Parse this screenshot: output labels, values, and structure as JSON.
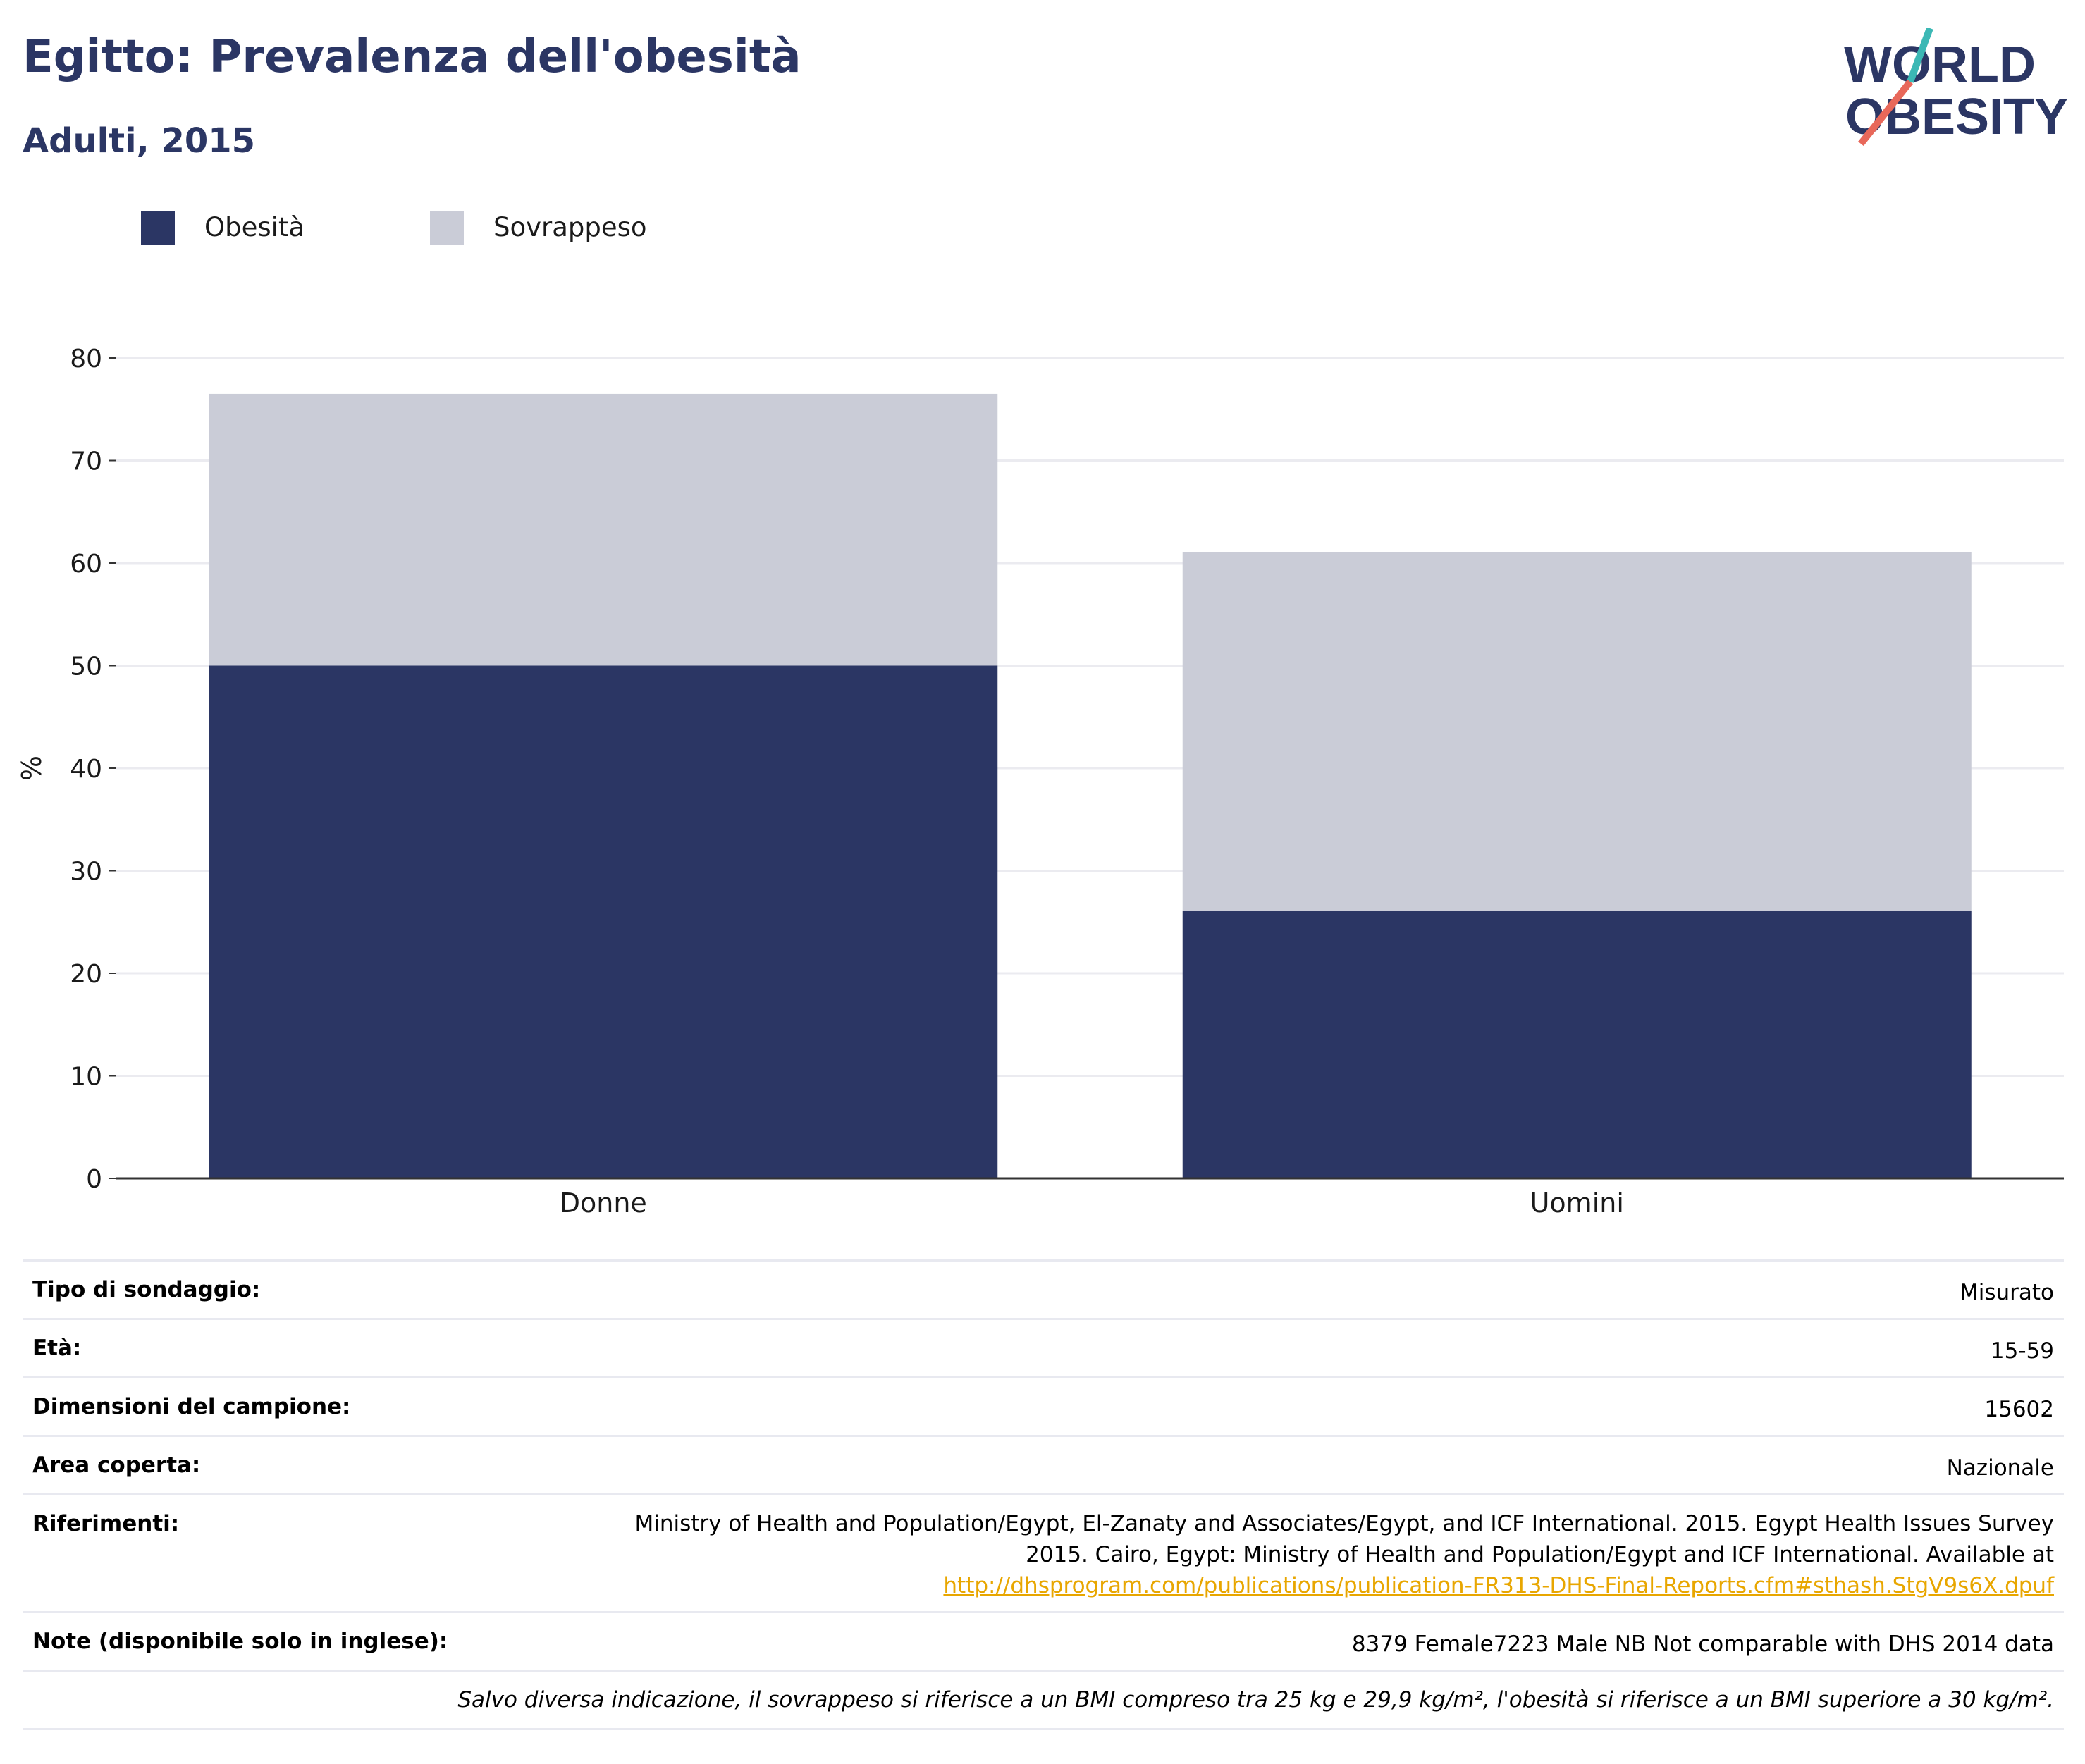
{
  "header": {
    "title": "Egitto: Prevalenza dell'obesità",
    "subtitle": "Adulti, 2015"
  },
  "logo": {
    "line1": "WORLD",
    "line2": "OBESITY",
    "colors": {
      "text": "#2b3664",
      "slash_top": "#3cb8b5",
      "slash_bottom": "#e8685a"
    }
  },
  "legend": {
    "items": [
      {
        "label": "Obesità",
        "color": "#2b3664"
      },
      {
        "label": "Sovrappeso",
        "color": "#caccd7"
      }
    ]
  },
  "chart_data": {
    "type": "bar",
    "stacked": true,
    "categories": [
      "Donne",
      "Uomini"
    ],
    "series": [
      {
        "name": "Obesità",
        "values": [
          50.0,
          26.1
        ],
        "color": "#2b3664"
      },
      {
        "name": "Sovrappeso",
        "values": [
          26.5,
          35.0
        ],
        "color": "#caccd7"
      }
    ],
    "ylabel": "%",
    "xlabel": "",
    "ylim": [
      0,
      80
    ],
    "yticks": [
      0,
      10,
      20,
      30,
      40,
      50,
      60,
      70,
      80
    ],
    "grid": true,
    "legend_position": "top-left"
  },
  "info": {
    "survey_type": {
      "label": "Tipo di sondaggio:",
      "value": "Misurato"
    },
    "age": {
      "label": "Età:",
      "value": "15-59"
    },
    "sample_size": {
      "label": "Dimensioni del campione:",
      "value": "15602"
    },
    "area": {
      "label": "Area coperta:",
      "value": "Nazionale"
    },
    "references": {
      "label": "Riferimenti:",
      "line1": "Ministry of Health and Population/Egypt, El-Zanaty and Associates/Egypt, and ICF International. 2015. Egypt Health Issues Survey",
      "line2": "2015. Cairo, Egypt: Ministry of Health and Population/Egypt and ICF International. Available at",
      "link": "http://dhsprogram.com/publications/publication-FR313-DHS-Final-Reports.cfm#sthash.StgV9s6X.dpuf"
    },
    "notes": {
      "label": "Note (disponibile solo in inglese):",
      "value": "8379 Female7223 Male NB Not comparable with DHS 2014 data"
    },
    "footnote": "Salvo diversa indicazione, il sovrappeso si riferisce a un BMI compreso tra 25 kg e 29,9 kg/m², l'obesità si riferisce a un BMI superiore a 30 kg/m²."
  }
}
